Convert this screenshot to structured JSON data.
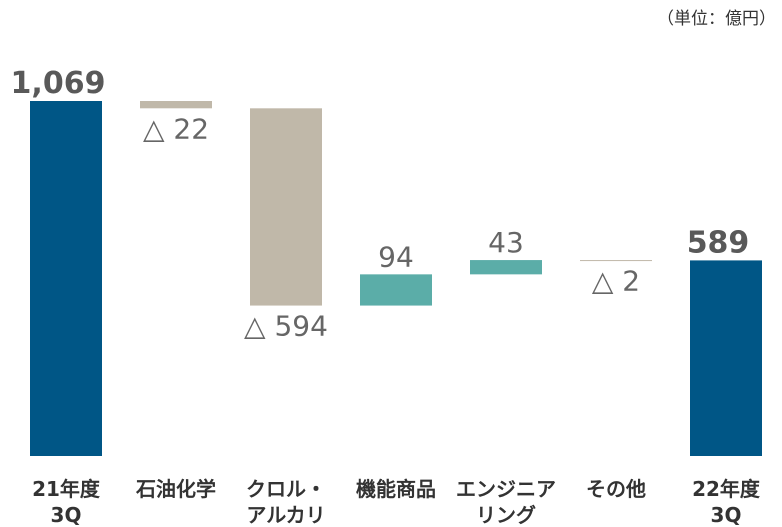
{
  "unit_note": "（単位：億円）",
  "colors": {
    "total": "#005686",
    "decrease": "#c0b8a9",
    "increase": "#5bada8",
    "total_label": "#595959",
    "value_label": "#666666",
    "category_label": "#333333"
  },
  "chart_data": {
    "type": "bar",
    "subtype": "waterfall",
    "categories": [
      "21年度\n3Q",
      "石油化学",
      "クロル・\nアルカリ",
      "機能商品",
      "エンジニア\nリング",
      "その他",
      "22年度\n3Q"
    ],
    "values": [
      1069,
      -22,
      -594,
      94,
      43,
      -2,
      589
    ],
    "kinds": [
      "total",
      "delta",
      "delta",
      "delta",
      "delta",
      "delta",
      "total"
    ],
    "data_labels": [
      "1,069",
      "△ 22",
      "△ 594",
      "94",
      "43",
      "△ 2",
      "589"
    ],
    "ylim": [
      0,
      1069
    ]
  }
}
